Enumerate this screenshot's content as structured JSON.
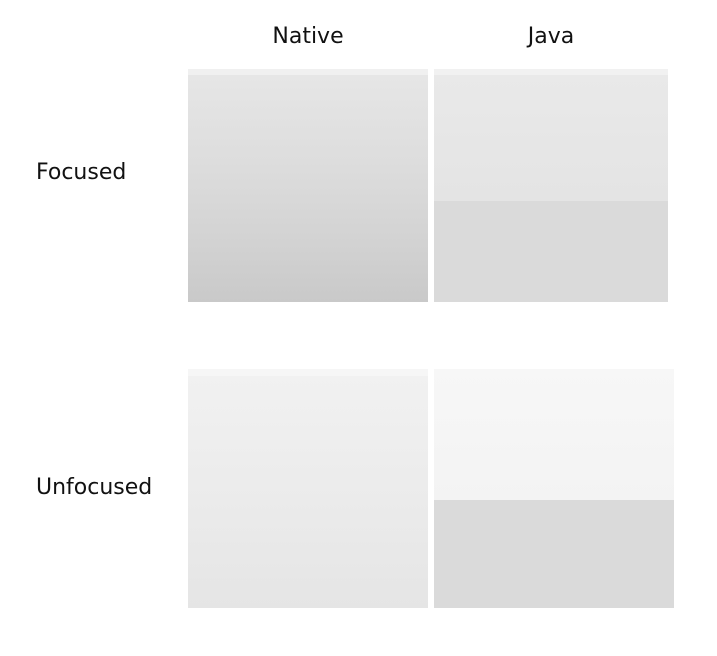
{
  "columns": {
    "native": "Native",
    "java": "Java"
  },
  "rows": {
    "focused": "Focused",
    "unfocused": "Unfocused"
  },
  "colors": {
    "background": "#ffffff",
    "text": "#111111",
    "focused_native_top": "#e6e6e6",
    "focused_native_bottom": "#c9c9c9",
    "focused_java_top": "#e9e9e9",
    "focused_java_bottom": "#dadada",
    "unfocused_native_top": "#f1f1f1",
    "unfocused_native_bottom": "#e5e5e5",
    "unfocused_java_top": "#f7f7f7",
    "unfocused_java_bottom": "#dadada"
  }
}
